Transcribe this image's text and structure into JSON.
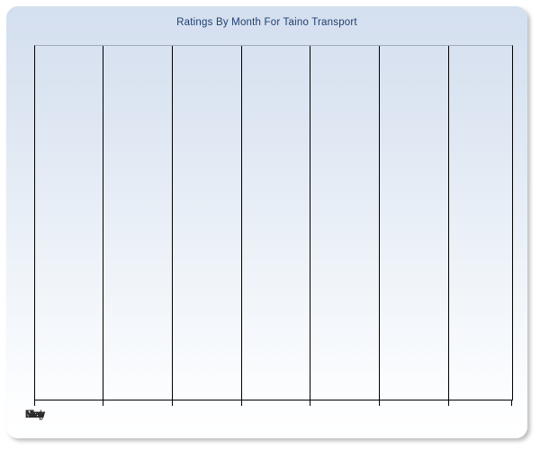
{
  "page": {
    "background": "#ffffff"
  },
  "panel": {
    "gradient_top": "#d4dfef",
    "gradient_bottom": "#ffffff",
    "shadow_color": "rgba(110,110,110,0.45)"
  },
  "chart": {
    "title": "Ratings By Month For Taino Transport",
    "title_color": "#1e3e70",
    "axis_color": "#000000",
    "plot_top_border_color": "#a4acb9",
    "gridline_color": "#000000",
    "label_color": "#2b2b2b",
    "x_labels": [
      "Jan",
      "Mar",
      "May",
      "Jul",
      "Sep",
      "Nov"
    ]
  },
  "chart_data": {
    "type": "line",
    "title": "Ratings By Month For Taino Transport",
    "xlabel": "",
    "ylabel": "",
    "x_tick_labels": [
      "Jan",
      "Mar",
      "May",
      "Jul",
      "Sep",
      "Nov"
    ],
    "y_tick_labels": [],
    "series": [],
    "grid": "vertical-only",
    "legend": "none",
    "plot_background": "vertical gradient light blue to white",
    "note": "empty plot area - no data points rendered"
  }
}
